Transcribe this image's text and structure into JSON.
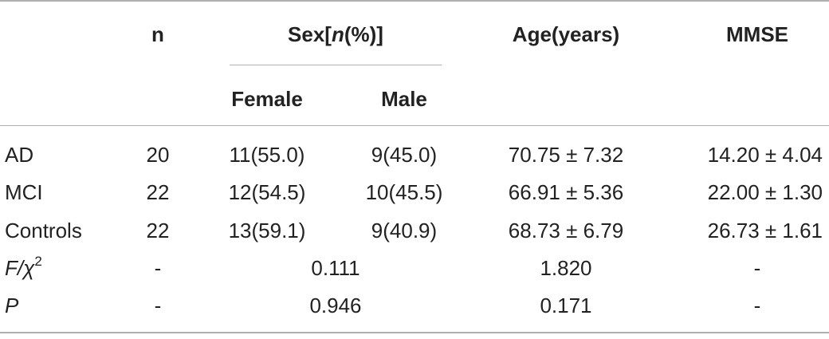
{
  "header": {
    "n": "n",
    "sex_pre": "Sex[",
    "sex_n": "n",
    "sex_post": "(%)]",
    "age": "Age(years)",
    "mmse": "MMSE",
    "female": "Female",
    "male": "Male"
  },
  "rows": [
    {
      "group": "AD",
      "n": "20",
      "female": "11(55.0)",
      "male": "9(45.0)",
      "age": "70.75 ± 7.32",
      "mmse": "14.20 ± 4.04"
    },
    {
      "group": "MCI",
      "n": "22",
      "female": "12(54.5)",
      "male": "10(45.5)",
      "age": "66.91 ± 5.36",
      "mmse": "22.00 ± 1.30"
    },
    {
      "group": "Controls",
      "n": "22",
      "female": "13(59.1)",
      "male": "9(40.9)",
      "age": "68.73 ± 6.79",
      "mmse": "26.73 ± 1.61"
    }
  ],
  "stats": [
    {
      "label_main": "F/χ",
      "label_sup": "2",
      "n": "-",
      "sex": "0.111",
      "age": "1.820",
      "mmse": "-"
    },
    {
      "label_main": "P",
      "label_sup": "",
      "n": "-",
      "sex": "0.946",
      "age": "0.171",
      "mmse": "-"
    }
  ]
}
